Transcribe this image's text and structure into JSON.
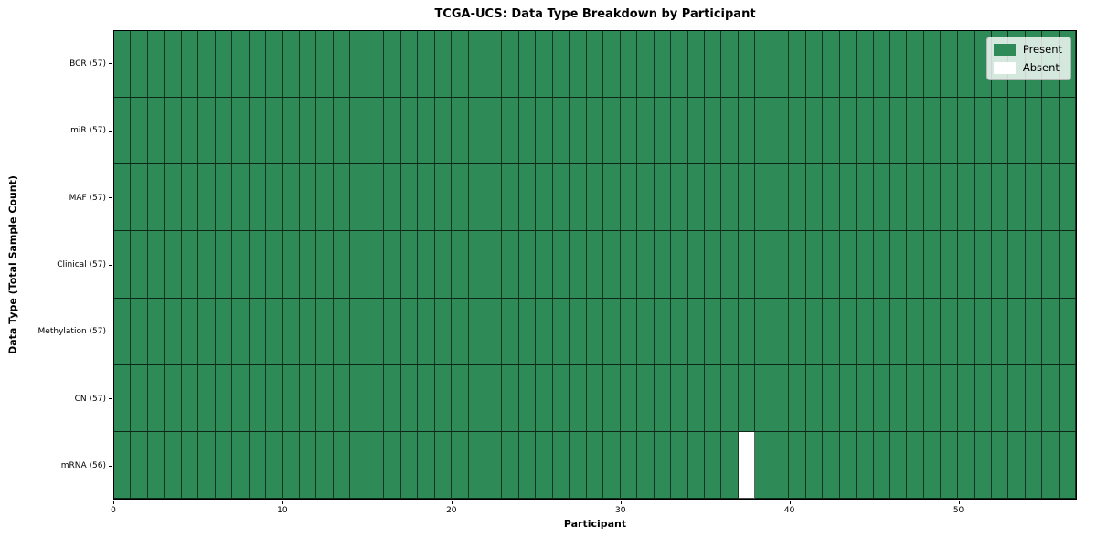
{
  "chart_data": {
    "type": "heatmap",
    "title": "TCGA-UCS: Data Type Breakdown by Participant",
    "xlabel": "Participant",
    "ylabel": "Data Type (Total Sample Count)",
    "x_ticks": [
      0,
      10,
      20,
      30,
      40,
      50
    ],
    "x_range": [
      0,
      57
    ],
    "n_participants": 57,
    "rows": [
      {
        "label": "BCR (57)",
        "data_type": "BCR",
        "count": 57,
        "absent_participants": []
      },
      {
        "label": "miR (57)",
        "data_type": "miR",
        "count": 57,
        "absent_participants": []
      },
      {
        "label": "MAF (57)",
        "data_type": "MAF",
        "count": 57,
        "absent_participants": []
      },
      {
        "label": "Clinical (57)",
        "data_type": "Clinical",
        "count": 57,
        "absent_participants": []
      },
      {
        "label": "Methylation (57)",
        "data_type": "Methylation",
        "count": 57,
        "absent_participants": []
      },
      {
        "label": "CN (57)",
        "data_type": "CN",
        "count": 57,
        "absent_participants": []
      },
      {
        "label": "mRNA (56)",
        "data_type": "mRNA",
        "count": 56,
        "absent_participants": [
          37
        ]
      }
    ],
    "colors": {
      "present": "#2E8B57",
      "absent": "#FFFFFF"
    },
    "legend_position": "upper right",
    "grid": "cell-borders"
  },
  "legend": {
    "items": [
      {
        "label": "Present",
        "color": "#2E8B57"
      },
      {
        "label": "Absent",
        "color": "#FFFFFF"
      }
    ]
  }
}
